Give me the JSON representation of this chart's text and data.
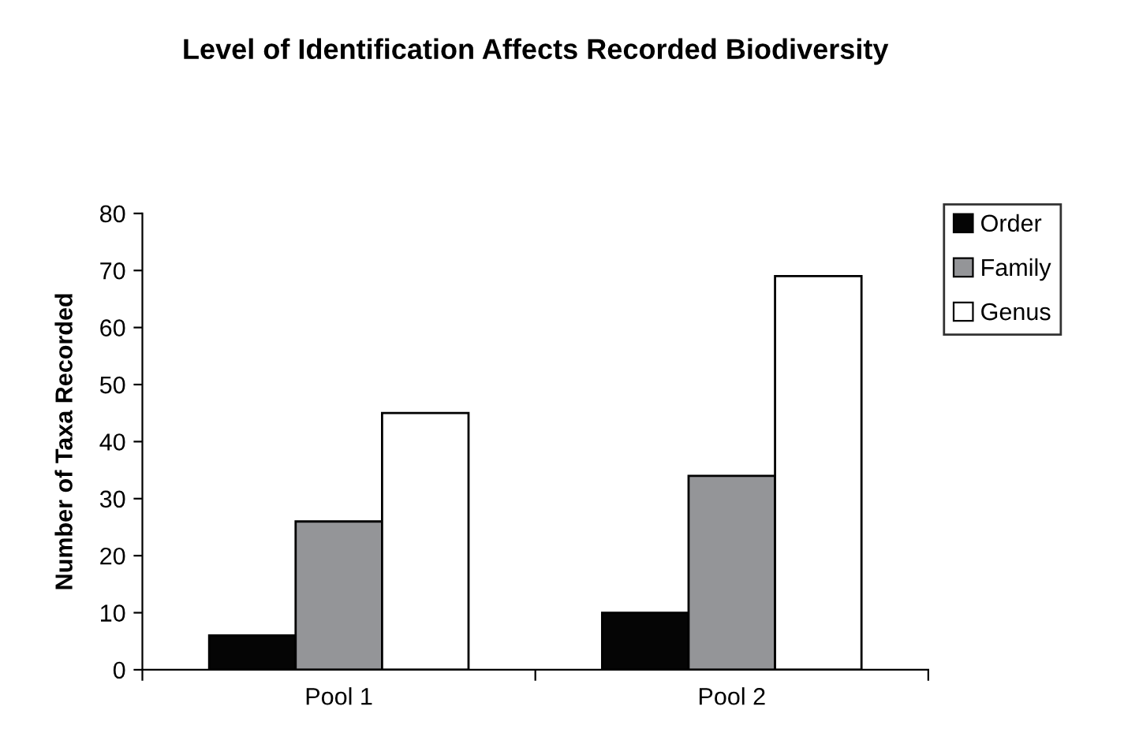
{
  "chart_data": {
    "type": "bar",
    "title": "Level of Identification Affects Recorded Biodiversity",
    "ylabel": "Number of Taxa Recorded",
    "categories": [
      "Pool 1",
      "Pool 2"
    ],
    "series": [
      {
        "name": "Order",
        "color": "#050505",
        "values": [
          6,
          10
        ]
      },
      {
        "name": "Family",
        "color": "#949598",
        "values": [
          26,
          34
        ]
      },
      {
        "name": "Genus",
        "color": "#ffffff",
        "values": [
          45,
          69
        ]
      }
    ],
    "ylim": [
      0,
      80
    ],
    "yticks": [
      0,
      10,
      20,
      30,
      40,
      50,
      60,
      70,
      80
    ],
    "grid": false,
    "legend": "top right"
  }
}
